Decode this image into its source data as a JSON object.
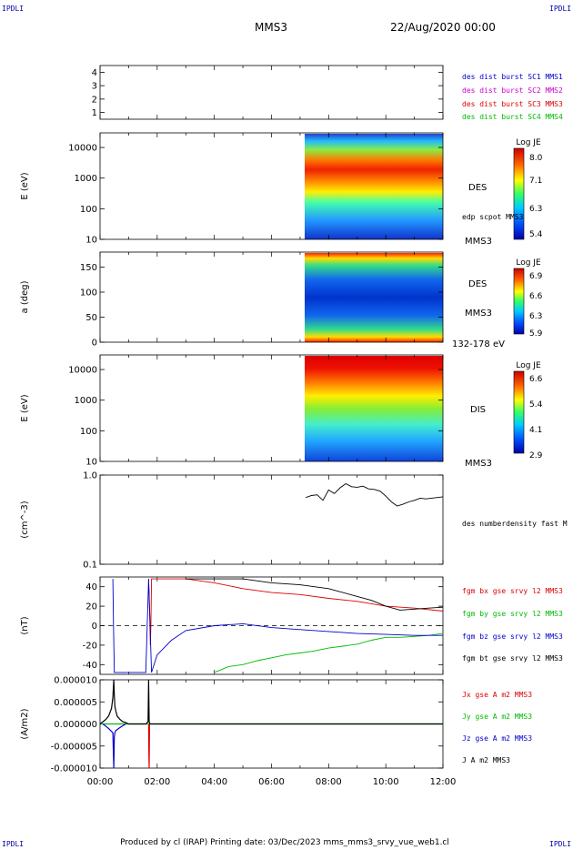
{
  "corner_labels": [
    "IPDLI",
    "IPDLI",
    "IPDLI",
    "IPDLI"
  ],
  "header": {
    "spacecraft": "MMS3",
    "date": "22/Aug/2020 00:00"
  },
  "footer": {
    "text": "Produced by cl (IRAP)   Printing date: 03/Dec/2023   mms_mms3_srvy_vue_web1.cl"
  },
  "time_axis": {
    "ticks": [
      "00:00",
      "02:00",
      "04:00",
      "06:00",
      "08:00",
      "10:00",
      "12:00"
    ],
    "range_hours": [
      0,
      12
    ]
  },
  "colors": {
    "blue": "#0000cc",
    "magenta": "#cc00cc",
    "red": "#dd0000",
    "green": "#00bb00",
    "black": "#000000"
  },
  "chart_data": [
    {
      "type": "line",
      "id": "burst_availability",
      "ylabel": "",
      "ylim": [
        0.5,
        4.5
      ],
      "y_ticks": [
        "1",
        "2",
        "3",
        "4"
      ],
      "legend": [
        {
          "label": "des dist burst SC1 MMS1",
          "color": "#0000cc"
        },
        {
          "label": "des dist burst SC2 MMS2",
          "color": "#cc00cc"
        },
        {
          "label": "des dist burst SC3 MMS3",
          "color": "#dd0000"
        },
        {
          "label": "des dist burst SC4 MMS4",
          "color": "#00bb00"
        }
      ]
    },
    {
      "type": "heatmap",
      "id": "des_energy_spectrogram",
      "ylabel": "E (eV)",
      "y_scale": "log",
      "ylim": [
        10,
        30000
      ],
      "y_ticks": [
        "10",
        "100",
        "1000",
        "10000"
      ],
      "data_start_hour": 7.2,
      "labels": [
        "DES",
        "edp scpot MMS3",
        "MMS3"
      ],
      "colorbar": {
        "title": "Log JE",
        "ticks": [
          "8.0",
          "7.1",
          "6.3",
          "5.4"
        ],
        "range": [
          5.4,
          8.0
        ]
      }
    },
    {
      "type": "heatmap",
      "id": "des_pitch_angle",
      "ylabel": "a (deg)",
      "ylim": [
        0,
        180
      ],
      "y_ticks": [
        "0",
        "50",
        "100",
        "150"
      ],
      "data_start_hour": 7.2,
      "labels": [
        "DES",
        "MMS3",
        "132-178 eV"
      ],
      "colorbar": {
        "title": "Log JE",
        "ticks": [
          "6.9",
          "6.6",
          "6.3",
          "5.9"
        ],
        "range": [
          5.9,
          6.9
        ]
      }
    },
    {
      "type": "heatmap",
      "id": "dis_energy_spectrogram",
      "ylabel": "E (eV)",
      "y_scale": "log",
      "ylim": [
        10,
        30000
      ],
      "y_ticks": [
        "10",
        "100",
        "1000",
        "10000"
      ],
      "data_start_hour": 7.2,
      "labels": [
        "DIS",
        "MMS3"
      ],
      "colorbar": {
        "title": "Log JE",
        "ticks": [
          "6.6",
          "5.4",
          "4.1",
          "2.9"
        ],
        "range": [
          2.9,
          6.6
        ]
      }
    },
    {
      "type": "line",
      "id": "density",
      "ylabel": "(cm^-3)",
      "y_scale": "log",
      "ylim": [
        0.1,
        1.0
      ],
      "y_ticks": [
        "0.1",
        "1.0"
      ],
      "series": [
        {
          "name": "des numberdensity fast M",
          "color": "#000000",
          "x": [
            7.2,
            7.4,
            7.6,
            7.8,
            8.0,
            8.2,
            8.4,
            8.6,
            8.8,
            9.0,
            9.2,
            9.4,
            9.6,
            9.8,
            10.0,
            10.2,
            10.4,
            10.6,
            10.8,
            11.0,
            11.2,
            11.4,
            11.6,
            11.8,
            12.0
          ],
          "y": [
            0.56,
            0.59,
            0.6,
            0.52,
            0.68,
            0.62,
            0.72,
            0.8,
            0.74,
            0.73,
            0.75,
            0.7,
            0.69,
            0.66,
            0.58,
            0.5,
            0.45,
            0.47,
            0.5,
            0.52,
            0.55,
            0.54,
            0.55,
            0.56,
            0.57
          ]
        }
      ]
    },
    {
      "type": "line",
      "id": "magnetic_field",
      "ylabel": "(nT)",
      "ylim": [
        -50,
        50
      ],
      "y_ticks": [
        "-40",
        "-20",
        "0",
        "20",
        "40"
      ],
      "series": [
        {
          "name": "fgm bx gse srvy l2 MMS3",
          "color": "#dd0000",
          "x": [
            1.7,
            1.72,
            1.74,
            1.76,
            1.78,
            1.8,
            2.0,
            3.0,
            4.0,
            5.0,
            6.0,
            7.0,
            8.0,
            9.0,
            10.0,
            11.0,
            12.0
          ],
          "y": [
            48,
            30,
            10,
            -20,
            0,
            48,
            48,
            48,
            44,
            38,
            34,
            32,
            28,
            25,
            20,
            18,
            15
          ]
        },
        {
          "name": "fgm by gse srvy l2 MMS3",
          "color": "#00bb00",
          "x": [
            4.0,
            4.5,
            5.0,
            5.5,
            6.0,
            6.5,
            7.0,
            7.5,
            8.0,
            8.5,
            9.0,
            9.5,
            10.0,
            10.5,
            11.0,
            11.5,
            12.0
          ],
          "y": [
            -48,
            -42,
            -40,
            -36,
            -33,
            -30,
            -28,
            -26,
            -23,
            -21,
            -19,
            -15,
            -12,
            -12,
            -11,
            -10,
            -8
          ]
        },
        {
          "name": "fgm bz gse srvy l2 MMS3",
          "color": "#0000cc",
          "x": [
            0.45,
            0.47,
            0.5,
            0.55,
            1.6,
            1.7,
            1.8,
            2.0,
            2.5,
            3.0,
            4.0,
            5.0,
            6.0,
            7.0,
            8.0,
            9.0,
            10.0,
            11.0,
            12.0
          ],
          "y": [
            48,
            0,
            -48,
            -48,
            -48,
            48,
            -48,
            -30,
            -15,
            -5,
            0,
            2,
            -2,
            -4,
            -6,
            -8,
            -9,
            -10,
            -10
          ]
        },
        {
          "name": "fgm bt gse srvy l2 MMS3",
          "color": "#000000",
          "x": [
            3.0,
            4.0,
            5.0,
            6.0,
            7.0,
            8.0,
            9.0,
            9.5,
            10.0,
            10.5,
            11.0,
            11.5,
            12.0
          ],
          "y": [
            48,
            48,
            48,
            44,
            42,
            38,
            30,
            26,
            20,
            16,
            17,
            18,
            19
          ]
        }
      ]
    },
    {
      "type": "line",
      "id": "current_density",
      "ylabel": "(A/m2)",
      "ylim": [
        -1e-05,
        1e-05
      ],
      "y_ticks": [
        "0.000010",
        "0.000005",
        "0.000000",
        "-0.000005",
        "-0.000010"
      ],
      "series": [
        {
          "name": "Jx gse A m2 MMS3",
          "color": "#dd0000",
          "x": [
            1.7,
            1.71,
            1.72,
            1.73
          ],
          "y": [
            0,
            -7e-06,
            -1e-05,
            0
          ]
        },
        {
          "name": "Jy gse A m2 MMS3",
          "color": "#00bb00",
          "x": [
            0.0,
            12.0
          ],
          "y": [
            0,
            0
          ]
        },
        {
          "name": "Jz gse A m2 MMS3",
          "color": "#0000cc",
          "x": [
            0.1,
            0.3,
            0.45,
            0.48,
            0.5,
            0.52,
            0.55,
            0.7,
            0.9
          ],
          "y": [
            0,
            -1e-06,
            -2e-06,
            -1e-05,
            -3e-06,
            -2e-06,
            -1.5e-06,
            -8e-07,
            0
          ]
        },
        {
          "name": "J A m2 MMS3",
          "color": "#000000",
          "x": [
            0.0,
            0.1,
            0.2,
            0.3,
            0.4,
            0.45,
            0.48,
            0.5,
            0.52,
            0.55,
            0.6,
            0.7,
            0.8,
            0.9,
            1.0,
            1.6,
            1.68,
            1.7,
            1.72,
            1.75,
            2.0,
            12.0
          ],
          "y": [
            0,
            5e-07,
            1e-06,
            1.8e-06,
            3.5e-06,
            6e-06,
            1e-05,
            6.5e-06,
            4e-06,
            3e-06,
            1.8e-06,
            1e-06,
            5e-07,
            3e-07,
            0,
            0,
            5e-07,
            1e-05,
            5e-07,
            0,
            0,
            0
          ]
        }
      ]
    }
  ]
}
